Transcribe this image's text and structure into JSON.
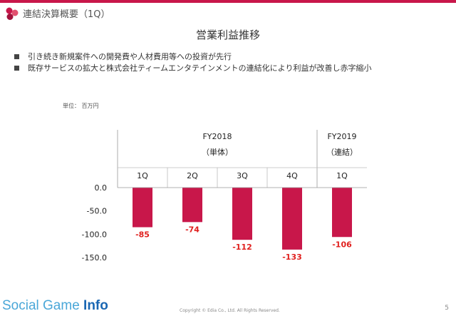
{
  "header": {
    "section_title": "連結決算概要（1Q）"
  },
  "slide": {
    "title": "営業利益推移",
    "bullets": [
      "引き続き新規案件への開発費や人材費用等への投資が先行",
      "既存サービスの拡大と株式会社ティームエンタテインメントの連結化により利益が改善し赤字縮小"
    ],
    "unit_label": "単位： 百万円"
  },
  "chart_data": {
    "type": "bar",
    "title": "営業利益推移",
    "groups": [
      {
        "label": "FY2018",
        "sublabel": "（単体）",
        "categories": [
          "1Q",
          "2Q",
          "3Q",
          "4Q"
        ]
      },
      {
        "label": "FY2019",
        "sublabel": "（連結）",
        "categories": [
          "1Q"
        ]
      }
    ],
    "categories": [
      "1Q",
      "2Q",
      "3Q",
      "4Q",
      "1Q"
    ],
    "values": [
      -85,
      -74,
      -112,
      -133,
      -106
    ],
    "value_labels": [
      "-85",
      "-74",
      "-112",
      "-133",
      "-106"
    ],
    "ylim": [
      -150,
      0
    ],
    "yticks": [
      "0.0",
      "-50.0",
      "-100.0",
      "-150.0"
    ],
    "ytick_values": [
      0,
      -50,
      -100,
      -150
    ],
    "bar_color": "#c8174a",
    "label_color": "#e0201e",
    "grid": false
  },
  "footer": {
    "brand_main": "Social Game ",
    "brand_accent": "Info",
    "copyright": "Copyright © Edia Co., Ltd. All Rights Reserved.",
    "page_number": "5"
  },
  "colors": {
    "accent": "#c8174a",
    "brand_blue": "#4aa7d8",
    "brand_dark_blue": "#1a67b3"
  }
}
